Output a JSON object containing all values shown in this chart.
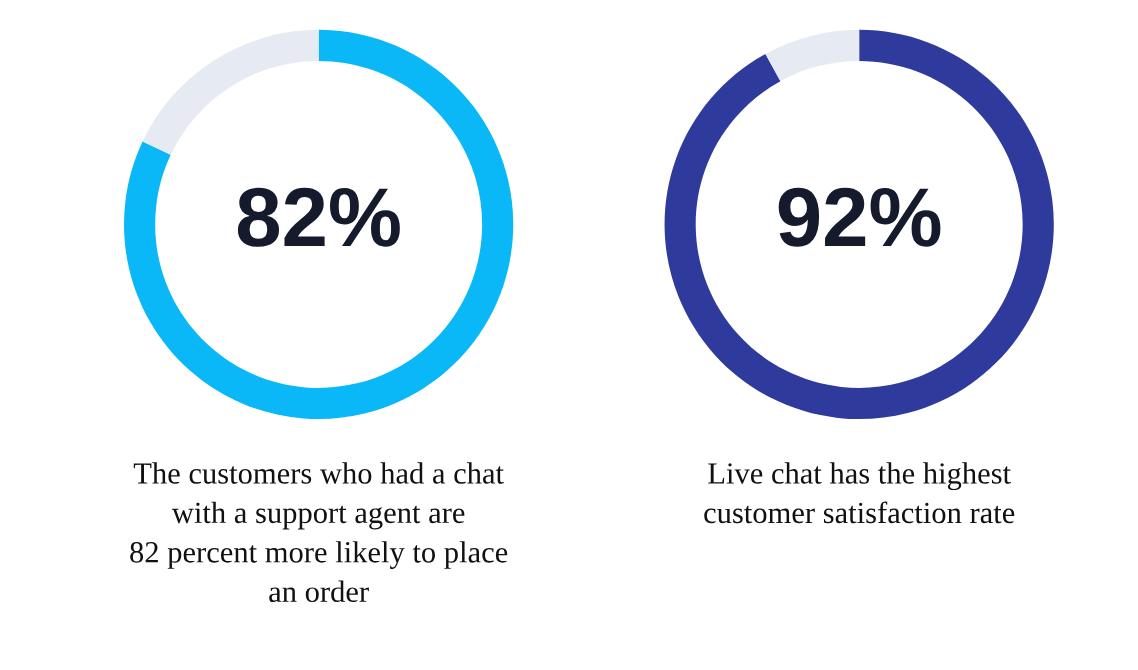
{
  "chart_data": [
    {
      "type": "donut",
      "categories": [
        null,
        null
      ],
      "values": [
        82,
        18
      ],
      "colors": [
        "#0ab8f7",
        "#e6ebf3"
      ],
      "value_labels": [
        "82%",
        null
      ],
      "annotations": [
        "The customers who had a chat\nwith a support agent are\n82 percent more likely to place\nan order"
      ]
    },
    {
      "type": "donut",
      "categories": [
        null,
        null
      ],
      "values": [
        92,
        8
      ],
      "colors": [
        "#2f3b9c",
        "#e6ebf3"
      ],
      "value_labels": [
        "92%",
        null
      ],
      "annotations": [
        "Live chat has the highest\ncustomer satisfaction rate"
      ]
    }
  ]
}
